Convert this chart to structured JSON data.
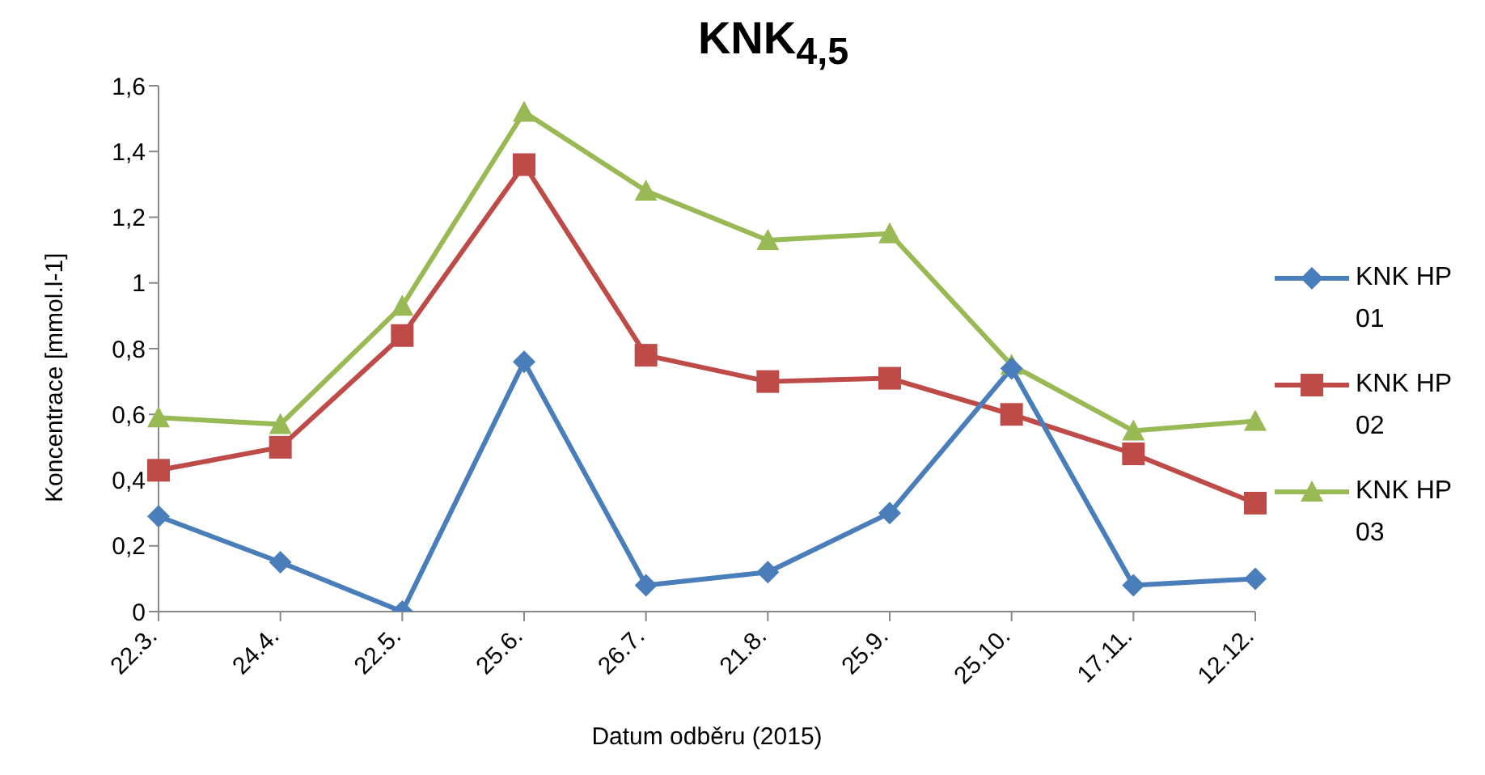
{
  "chart_data": {
    "type": "line",
    "title": "KNK$_{4,5}$",
    "xlabel": "Datum odběru (2015)",
    "ylabel": "Koncentrace [mmol.l-1]",
    "categories": [
      "22.3.",
      "24.4.",
      "22.5.",
      "25.6.",
      "26.7.",
      "21.8.",
      "25.9.",
      "25.10.",
      "17.11.",
      "12.12."
    ],
    "ylim": [
      0,
      1.6
    ],
    "yticks": [
      0,
      {
        "value": 0.2,
        "label": "0,2"
      },
      {
        "value": 0.4,
        "label": "0,4"
      },
      {
        "value": 0.6,
        "label": "0,6"
      },
      {
        "value": 0.8,
        "label": "0,8"
      },
      1,
      {
        "value": 1.2,
        "label": "1,2"
      },
      {
        "value": 1.4,
        "label": "1,4"
      },
      {
        "value": 1.6,
        "label": "1,6"
      }
    ],
    "legend": "right",
    "series": [
      {
        "name": "KNK HP 01",
        "color": "#4a7ebb",
        "marker": "diamond",
        "values": [
          0.29,
          0.15,
          0,
          0.76,
          0.08,
          0.12,
          0.3,
          0.74,
          0.08,
          0.1
        ]
      },
      {
        "name": "KNK HP 02",
        "color": "#be4b48",
        "marker": "square",
        "values": [
          0.43,
          0.5,
          0.84,
          1.36,
          0.78,
          0.7,
          0.71,
          0.6,
          0.48,
          0.33
        ]
      },
      {
        "name": "KNK HP 03",
        "color": "#98b954",
        "marker": "triangle",
        "values": [
          0.59,
          0.57,
          0.93,
          1.52,
          1.28,
          1.13,
          1.15,
          0.75,
          0.55,
          0.58
        ]
      }
    ]
  }
}
